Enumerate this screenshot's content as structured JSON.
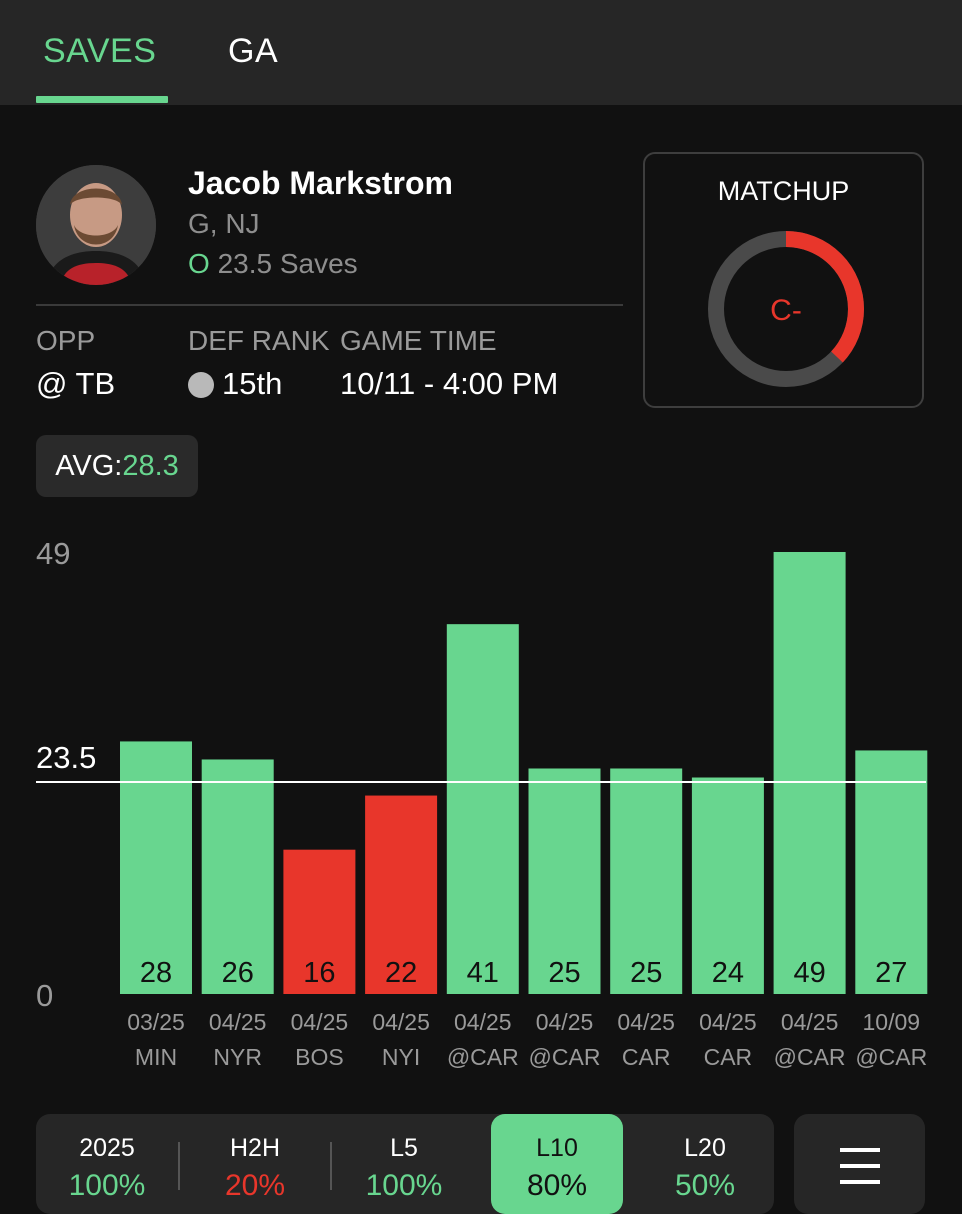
{
  "tabs": [
    {
      "label": "SAVES",
      "active": true
    },
    {
      "label": "GA",
      "active": false
    }
  ],
  "player": {
    "name": "Jacob Markstrom",
    "position": "G, NJ",
    "ou": "O",
    "line": "23.5 Saves"
  },
  "info": {
    "opp_label": "OPP",
    "opp_value": "@ TB",
    "def_label": "DEF RANK",
    "def_value": "15th",
    "time_label": "GAME TIME",
    "time_value": "10/11 - 4:00 PM"
  },
  "matchup": {
    "title": "MATCHUP",
    "grade": "C-",
    "fraction": 0.37
  },
  "avg": {
    "label": "AVG:",
    "value": "28.3"
  },
  "colors": {
    "accent": "#68d68f",
    "under": "#e8362b",
    "ring_track": "#4a4a4a",
    "bg": "#111111"
  },
  "chart_data": {
    "type": "bar",
    "y_tick_labels": [
      "49",
      "23.5",
      "0"
    ],
    "ylim": [
      0,
      49
    ],
    "threshold": 23.5,
    "categories": [
      {
        "date": "03/25",
        "opp": "MIN"
      },
      {
        "date": "04/25",
        "opp": "NYR"
      },
      {
        "date": "04/25",
        "opp": "BOS"
      },
      {
        "date": "04/25",
        "opp": "NYI"
      },
      {
        "date": "04/25",
        "opp": "@CAR"
      },
      {
        "date": "04/25",
        "opp": "@CAR"
      },
      {
        "date": "04/25",
        "opp": "CAR"
      },
      {
        "date": "04/25",
        "opp": "CAR"
      },
      {
        "date": "04/25",
        "opp": "@CAR"
      },
      {
        "date": "10/09",
        "opp": "@CAR"
      }
    ],
    "values": [
      28,
      26,
      16,
      22,
      41,
      25,
      25,
      24,
      49,
      27
    ],
    "colors": [
      "#68d68f",
      "#68d68f",
      "#e8362b",
      "#e8362b",
      "#68d68f",
      "#68d68f",
      "#68d68f",
      "#68d68f",
      "#68d68f",
      "#68d68f"
    ]
  },
  "filters": [
    {
      "label": "2025",
      "pct": "100%",
      "color": "#68d68f",
      "active": false
    },
    {
      "label": "H2H",
      "pct": "20%",
      "color": "#e8362b",
      "active": false
    },
    {
      "label": "L5",
      "pct": "100%",
      "color": "#68d68f",
      "active": false
    },
    {
      "label": "L10",
      "pct": "80%",
      "color": "#111111",
      "active": true
    },
    {
      "label": "L20",
      "pct": "50%",
      "color": "#68d68f",
      "active": false
    }
  ]
}
